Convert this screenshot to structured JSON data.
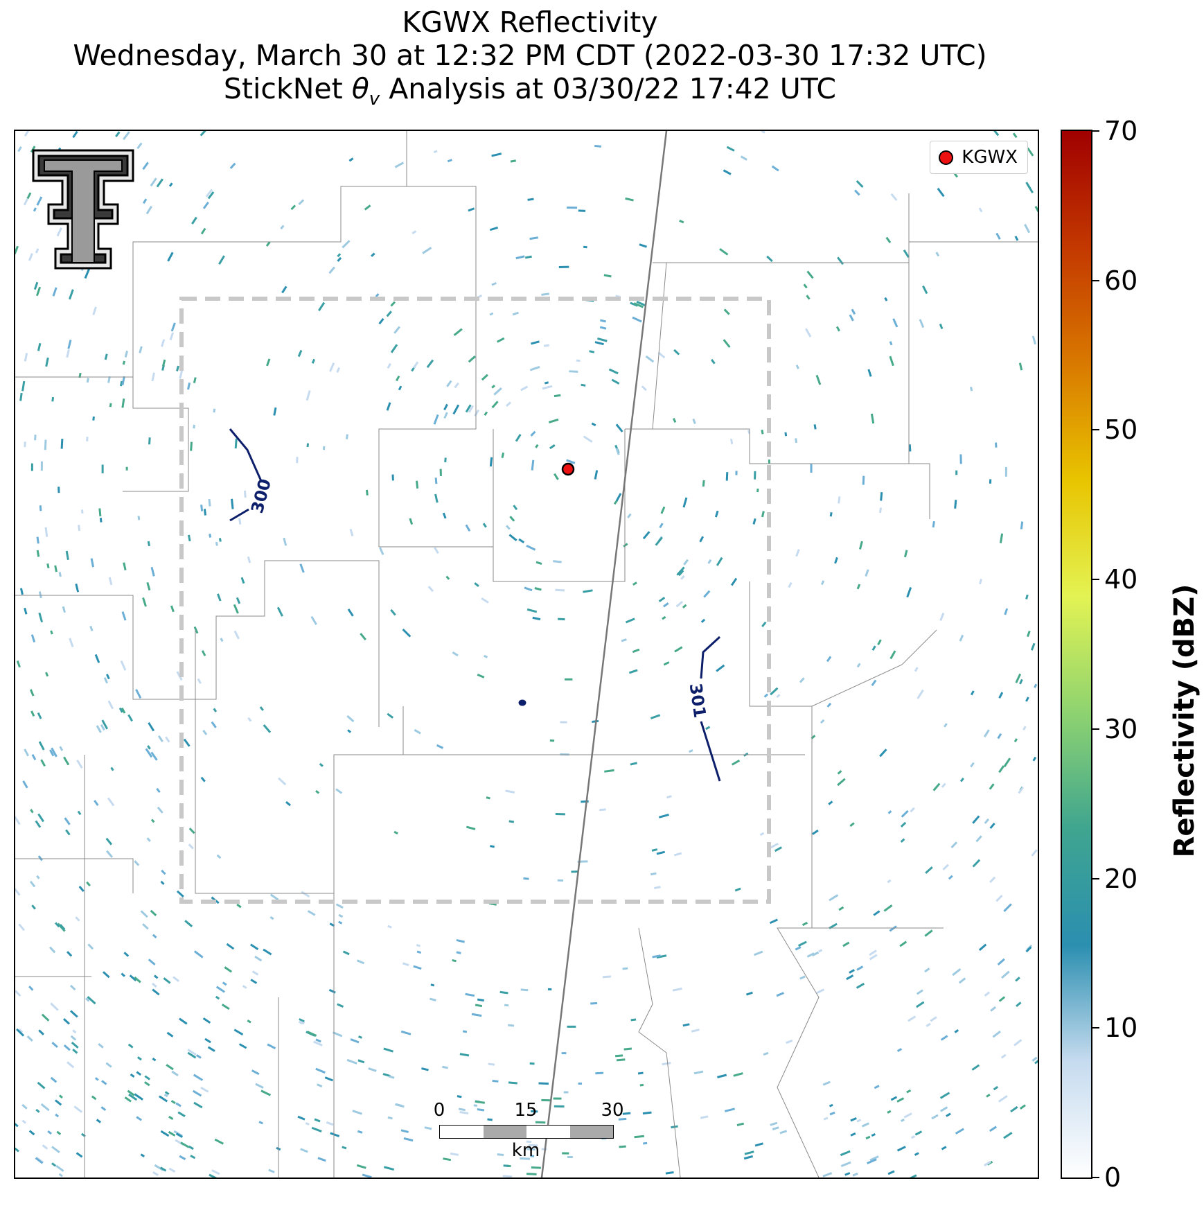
{
  "title": {
    "line1": "KGWX Reflectivity",
    "line2": "Wednesday, March 30 at 12:32 PM CDT (2022-03-30 17:32 UTC)",
    "line3_pre": "StickNet ",
    "line3_sym": "θ",
    "line3_sub": "v",
    "line3_post": " Analysis at 03/30/22 17:42 UTC"
  },
  "map": {
    "radar_site": "KGWX",
    "legend_label": "KGWX",
    "logo_name": "Texas Tech Double T",
    "marker_color": "#ee1111",
    "contours": [
      {
        "label": "300",
        "color": "#0d1f6b"
      },
      {
        "label": "301",
        "color": "#0d1f6b"
      }
    ],
    "analysis_domain_color": "#c8c8c8",
    "scalebar": {
      "ticks": [
        "0",
        "15",
        "30"
      ],
      "unit": "km"
    }
  },
  "colorbar": {
    "title": "Reflectivity (dBZ)",
    "min": 0,
    "max": 70,
    "tick_labels": [
      "0",
      "10",
      "20",
      "30",
      "40",
      "50",
      "60",
      "70"
    ],
    "colors": [
      "#ffffff",
      "#c6dbef",
      "#2b8fb0",
      "#3fa58f",
      "#8ed370",
      "#e3f353",
      "#e8c400",
      "#d97900",
      "#c33800",
      "#a00000"
    ]
  }
}
